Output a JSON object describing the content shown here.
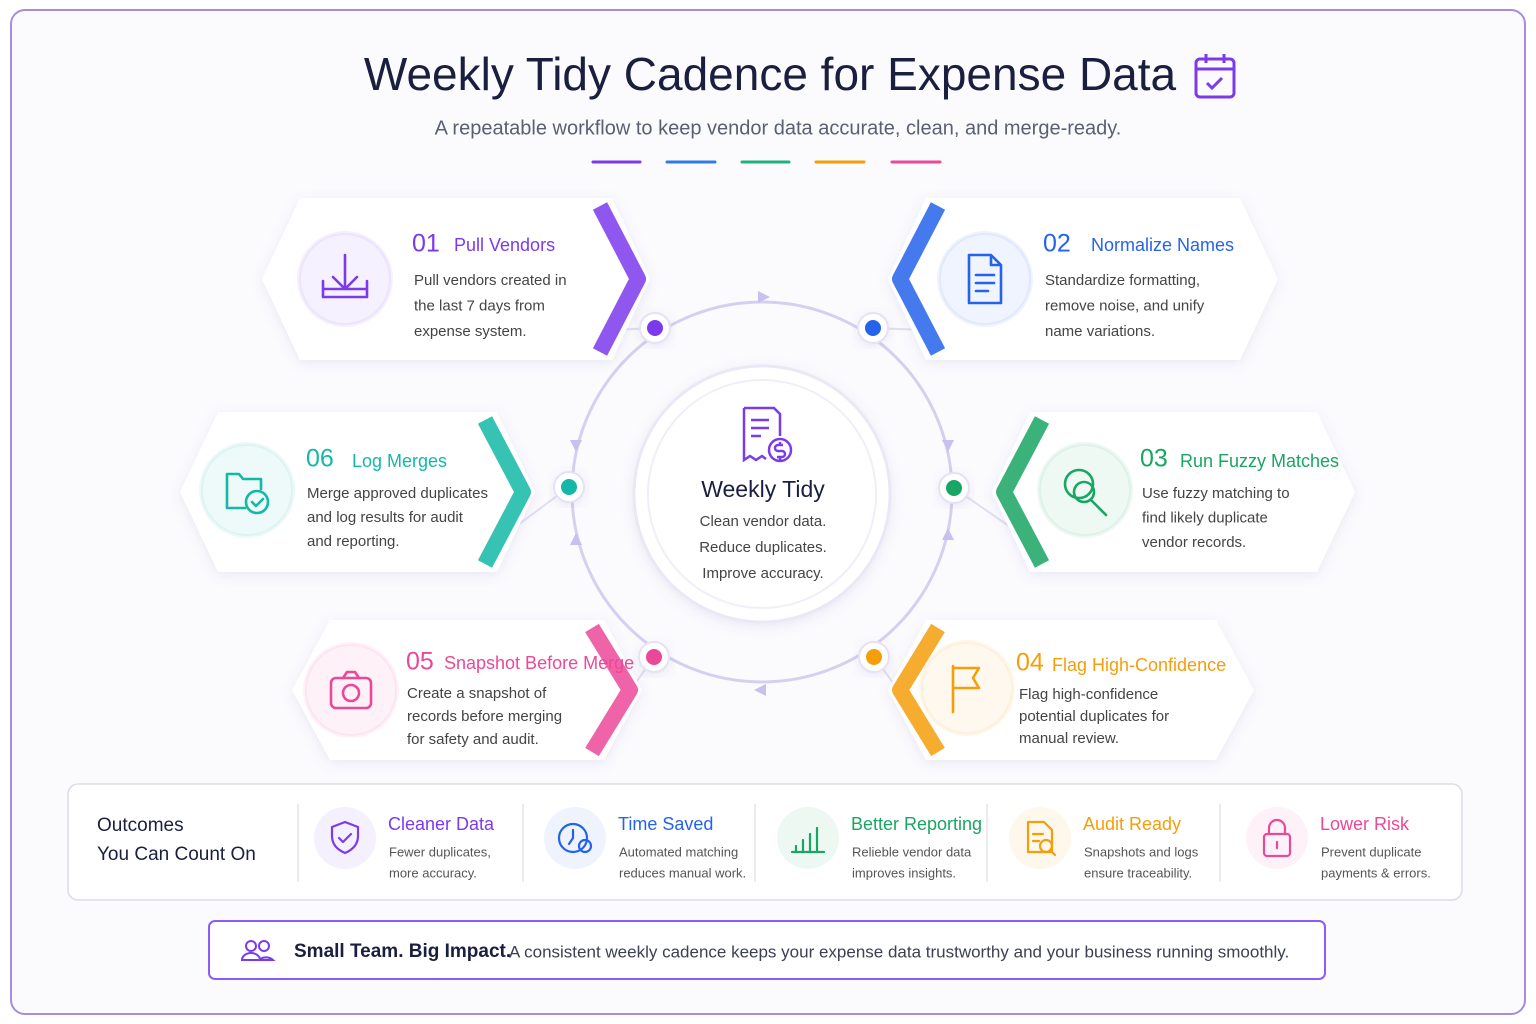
{
  "header": {
    "title": "Weekly Tidy Cadence for Expense Data",
    "subtitle": "A repeatable workflow to keep vendor data accurate, clean, and merge-ready."
  },
  "center": {
    "title": "Weekly Tidy",
    "lines": [
      "Clean vendor data.",
      "Reduce duplicates.",
      "Improve accuracy."
    ]
  },
  "steps": [
    {
      "number": "01",
      "title": "Pull Vendors",
      "description": [
        "Pull vendors created in",
        "the last 7 days from",
        "expense system."
      ]
    },
    {
      "number": "02",
      "title": "Normalize Names",
      "description": [
        "Standardize formatting,",
        "remove noise, and unify",
        "name variations."
      ]
    },
    {
      "number": "03",
      "title": "Run Fuzzy Matches",
      "description": [
        "Use fuzzy matching to",
        "find likely duplicate",
        "vendor records."
      ]
    },
    {
      "number": "04",
      "title": "Flag High-Confidence",
      "description": [
        "Flag high-confidence",
        "potential duplicates for",
        "manual review."
      ]
    },
    {
      "number": "05",
      "title": "Snapshot Before Merge",
      "description": [
        "Create a snapshot of",
        "records before merging",
        "for safety and audit."
      ]
    },
    {
      "number": "06",
      "title": "Log Merges",
      "description": [
        "Merge approved duplicates",
        "and log results for audit",
        "and reporting."
      ]
    }
  ],
  "outcomes": {
    "heading": [
      "Outcomes",
      "You Can Count On"
    ],
    "items": [
      {
        "title": "Cleaner Data",
        "description": [
          "Fewer duplicates,",
          "more accuracy."
        ]
      },
      {
        "title": "Time Saved",
        "description": [
          "Automated matching",
          "reduces manual work."
        ]
      },
      {
        "title": "Better Reporting",
        "description": [
          "Relieble vendor data",
          "improves insights."
        ]
      },
      {
        "title": "Audit Ready",
        "description": [
          "Snapshots and logs",
          "ensure traceability."
        ]
      },
      {
        "title": "Lower Risk",
        "description": [
          "Prevent duplicate",
          "payments & errors."
        ]
      }
    ]
  },
  "footer": {
    "emphasis": "Small Team. Big Impact.",
    "text": "A consistent weekly cadence keeps your expense data trustworthy and your business running smoothly."
  }
}
